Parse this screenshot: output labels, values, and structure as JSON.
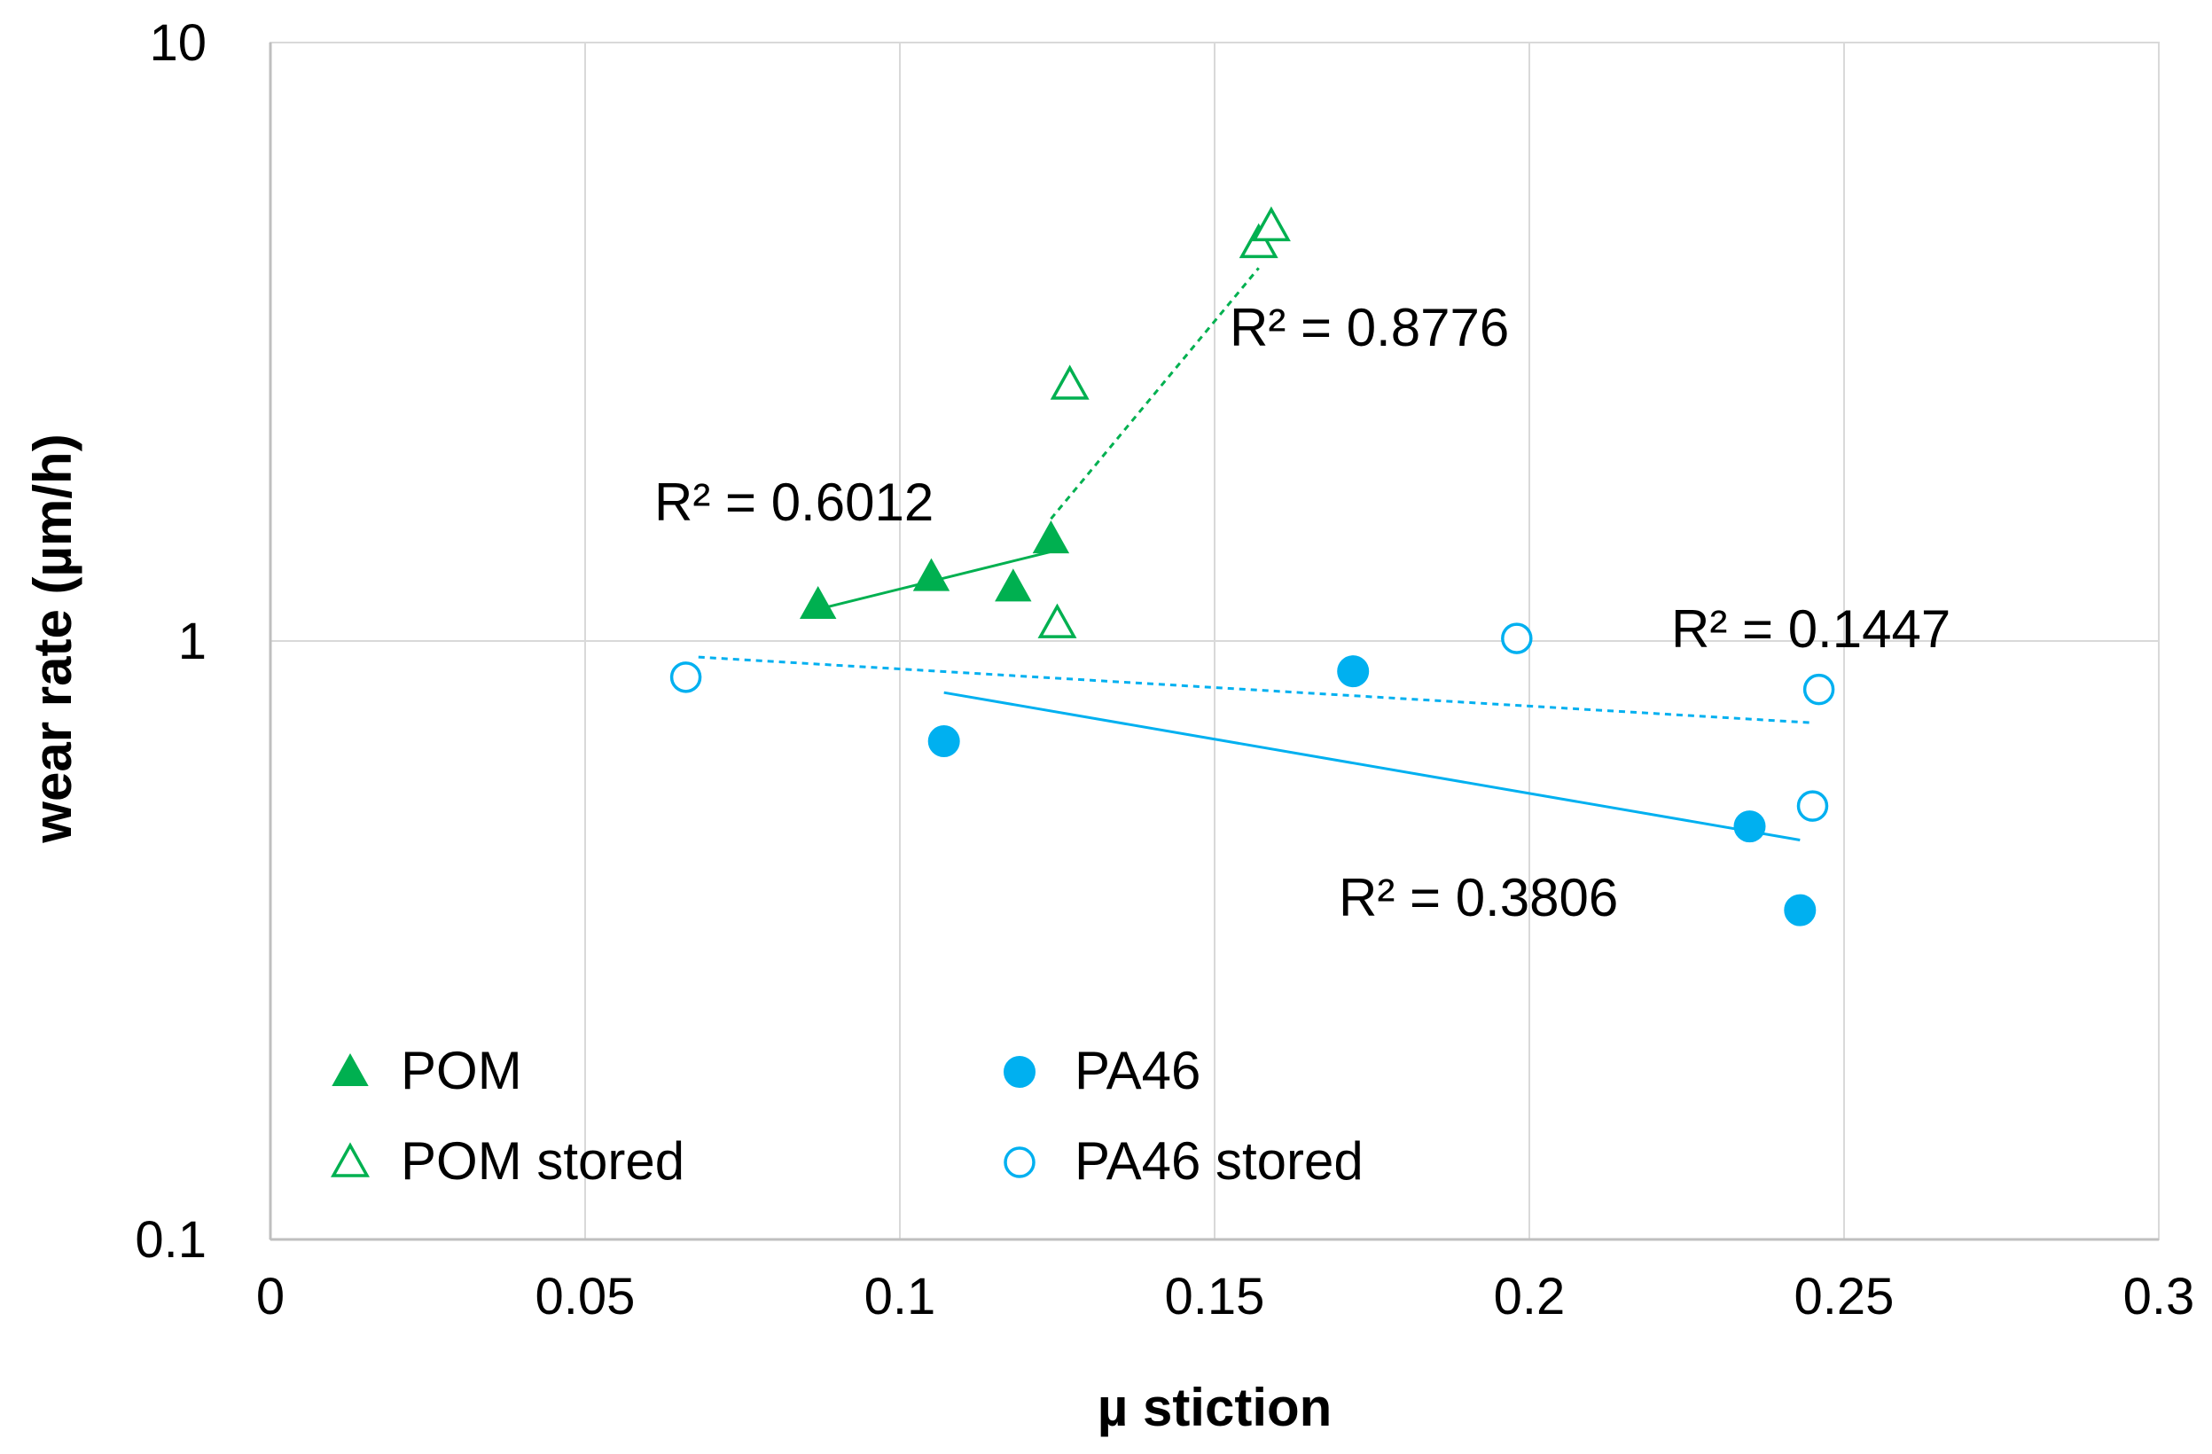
{
  "chart_data": {
    "type": "scatter",
    "title": "",
    "xlabel": "µ stiction",
    "ylabel": "wear rate (µm/h)",
    "xlim": [
      0,
      0.3
    ],
    "ylim": [
      0.1,
      10
    ],
    "yscale": "log",
    "grid": true,
    "x_ticks": [
      "0",
      "0.05",
      "0.1",
      "0.15",
      "0.2",
      "0.25",
      "0.3"
    ],
    "y_ticks": [
      "10",
      "1",
      "0.1"
    ],
    "legend_position": "bottom-left",
    "colors": {
      "green": "#00b050",
      "blue": "#00b0f0",
      "grid": "#d9d9d9",
      "axis": "#bfbfbf"
    },
    "series": [
      {
        "name": "POM",
        "marker": "triangle-filled",
        "color": "#00b050",
        "points": [
          [
            0.087,
            1.15
          ],
          [
            0.105,
            1.28
          ],
          [
            0.118,
            1.23
          ],
          [
            0.124,
            1.48
          ]
        ],
        "trendline": {
          "x": [
            0.087,
            0.124
          ],
          "y": [
            1.13,
            1.41
          ],
          "style": "solid"
        },
        "r2_label": "R² = 0.6012"
      },
      {
        "name": "POM stored",
        "marker": "triangle-open",
        "color": "#00b050",
        "points": [
          [
            0.125,
            1.07
          ],
          [
            0.127,
            2.68
          ],
          [
            0.157,
            4.62
          ],
          [
            0.159,
            4.93
          ]
        ],
        "trendline": {
          "x": [
            0.124,
            0.157
          ],
          "y": [
            1.6,
            4.2
          ],
          "style": "dashed"
        },
        "r2_label": "R² = 0.8776"
      },
      {
        "name": "PA46",
        "marker": "circle-filled",
        "color": "#00b0f0",
        "points": [
          [
            0.107,
            0.68
          ],
          [
            0.172,
            0.89
          ],
          [
            0.235,
            0.49
          ],
          [
            0.243,
            0.355
          ]
        ],
        "trendline": {
          "x": [
            0.107,
            0.243
          ],
          "y": [
            0.82,
            0.465
          ],
          "style": "solid"
        },
        "r2_label": "R² = 0.3806"
      },
      {
        "name": "PA46 stored",
        "marker": "circle-open",
        "color": "#00b0f0",
        "points": [
          [
            0.066,
            0.87
          ],
          [
            0.198,
            1.01
          ],
          [
            0.245,
            0.53
          ],
          [
            0.246,
            0.83
          ]
        ],
        "trendline": {
          "x": [
            0.068,
            0.245
          ],
          "y": [
            0.94,
            0.73
          ],
          "style": "dashed"
        },
        "r2_label": "R² = 0.1447"
      }
    ]
  }
}
